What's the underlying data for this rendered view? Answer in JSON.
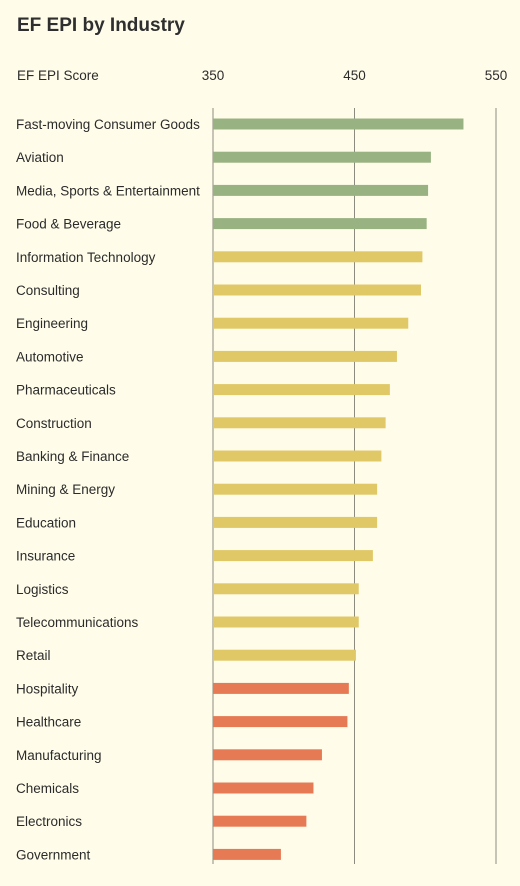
{
  "title": "EF EPI by Industry",
  "colors": {
    "background": "#fffdea",
    "high": "#98b282",
    "moderate": "#e0c866",
    "low": "#e67a55",
    "gridline": "#8b8b80",
    "text": "#2b2b2b"
  },
  "chart_data": {
    "type": "bar",
    "orientation": "horizontal",
    "title": "EF EPI by Industry",
    "xlabel": "EF EPI Score",
    "ylabel": "",
    "xlim": [
      350,
      550
    ],
    "xticks": [
      350,
      450,
      550
    ],
    "grid": true,
    "categories": [
      "Fast-moving Consumer Goods",
      "Aviation",
      "Media, Sports & Entertainment",
      "Food & Beverage",
      "Information Technology",
      "Consulting",
      "Engineering",
      "Automotive",
      "Pharmaceuticals",
      "Construction",
      "Banking & Finance",
      "Mining & Energy",
      "Education",
      "Insurance",
      "Logistics",
      "Telecommunications",
      "Retail",
      "Hospitality",
      "Healthcare",
      "Manufacturing",
      "Chemicals",
      "Electronics",
      "Government"
    ],
    "values": [
      527,
      504,
      502,
      501,
      498,
      497,
      488,
      480,
      475,
      472,
      469,
      466,
      466,
      463,
      453,
      453,
      451,
      446,
      445,
      427,
      421,
      416,
      398
    ],
    "color_groups": [
      "high",
      "high",
      "high",
      "high",
      "moderate",
      "moderate",
      "moderate",
      "moderate",
      "moderate",
      "moderate",
      "moderate",
      "moderate",
      "moderate",
      "moderate",
      "moderate",
      "moderate",
      "moderate",
      "low",
      "low",
      "low",
      "low",
      "low",
      "low"
    ]
  }
}
